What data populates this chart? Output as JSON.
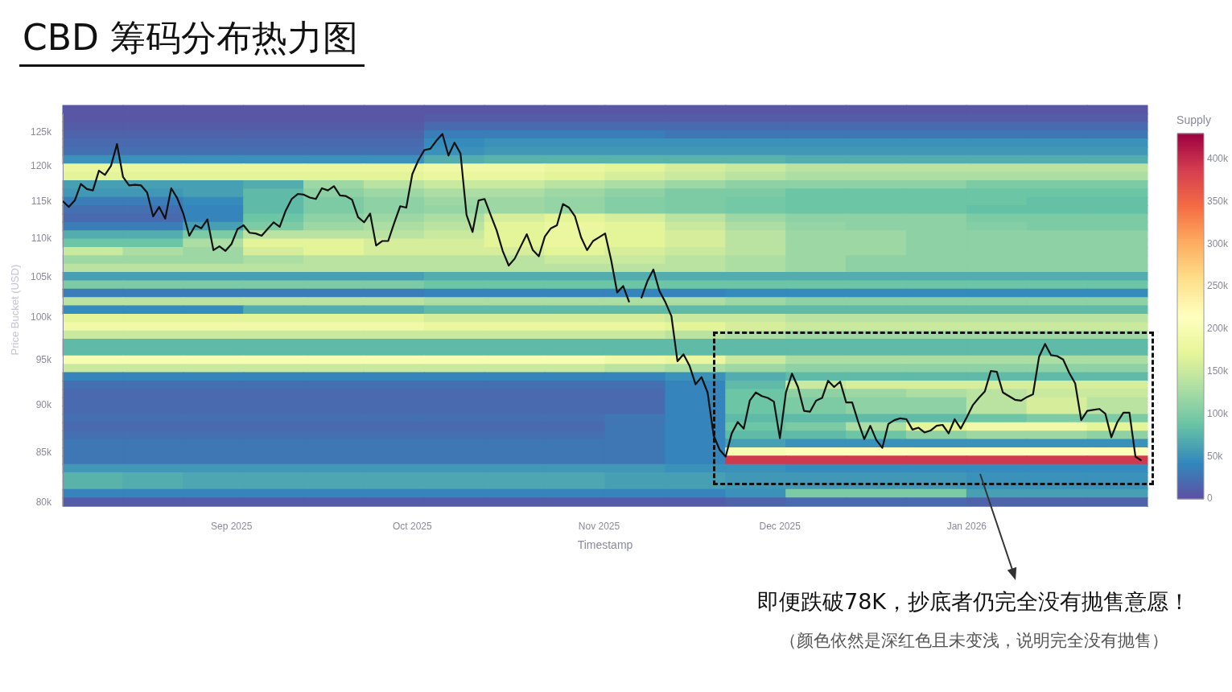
{
  "chart_data": [
    {
      "type": "heatmap",
      "title": "CBD 筹码分布热力图",
      "clabel": "Supply",
      "categories": [
        null,
        null,
        null,
        null,
        null,
        null,
        null,
        null,
        null,
        null,
        null,
        null,
        null,
        null,
        null,
        null,
        null,
        null
      ],
      "y_categories": [
        null,
        null,
        null,
        null,
        null,
        null,
        null,
        null,
        null,
        null,
        null,
        null,
        null,
        null,
        null,
        null,
        null,
        null,
        null,
        null,
        null,
        null,
        null,
        null,
        null,
        null,
        null,
        null,
        null,
        null,
        null,
        null,
        null,
        null,
        null,
        null,
        null,
        null,
        null,
        null,
        null,
        null,
        null,
        null,
        null,
        null,
        null,
        null
      ],
      "cells": [
        [
          5000,
          5000,
          5000,
          5000,
          5000,
          5000,
          5000,
          5000,
          5000,
          5000,
          5000,
          5000,
          5000,
          5000,
          5000,
          5000,
          5000,
          5000
        ],
        [
          5000,
          5000,
          5000,
          5000,
          5000,
          5000,
          10000,
          10000,
          10000,
          10000,
          10000,
          10000,
          10000,
          10000,
          10000,
          10000,
          10000,
          10000
        ],
        [
          10000,
          10000,
          10000,
          10000,
          10000,
          10000,
          20000,
          20000,
          20000,
          20000,
          20000,
          20000,
          20000,
          20000,
          20000,
          20000,
          20000,
          20000
        ],
        [
          15000,
          15000,
          15000,
          15000,
          15000,
          15000,
          35000,
          35000,
          35000,
          35000,
          30000,
          30000,
          30000,
          30000,
          30000,
          30000,
          30000,
          30000
        ],
        [
          20000,
          20000,
          20000,
          20000,
          20000,
          20000,
          45000,
          50000,
          50000,
          50000,
          50000,
          50000,
          50000,
          50000,
          50000,
          50000,
          50000,
          50000
        ],
        [
          25000,
          25000,
          25000,
          25000,
          25000,
          25000,
          50000,
          55000,
          55000,
          55000,
          55000,
          55000,
          55000,
          55000,
          55000,
          55000,
          55000,
          55000
        ],
        [
          50000,
          50000,
          50000,
          50000,
          50000,
          50000,
          70000,
          75000,
          75000,
          75000,
          75000,
          75000,
          70000,
          70000,
          70000,
          70000,
          70000,
          70000
        ],
        [
          180000,
          180000,
          180000,
          180000,
          180000,
          180000,
          190000,
          190000,
          180000,
          170000,
          160000,
          150000,
          140000,
          140000,
          140000,
          140000,
          140000,
          140000
        ],
        [
          170000,
          170000,
          170000,
          170000,
          170000,
          170000,
          180000,
          180000,
          170000,
          160000,
          150000,
          140000,
          130000,
          130000,
          130000,
          130000,
          130000,
          130000
        ],
        [
          60000,
          60000,
          60000,
          70000,
          120000,
          140000,
          150000,
          150000,
          140000,
          130000,
          120000,
          110000,
          110000,
          110000,
          110000,
          100000,
          100000,
          100000
        ],
        [
          55000,
          55000,
          60000,
          80000,
          110000,
          120000,
          130000,
          130000,
          120000,
          110000,
          100000,
          100000,
          90000,
          90000,
          90000,
          90000,
          90000,
          90000
        ],
        [
          35000,
          35000,
          45000,
          80000,
          100000,
          110000,
          120000,
          120000,
          115000,
          105000,
          100000,
          95000,
          90000,
          90000,
          90000,
          90000,
          85000,
          85000
        ],
        [
          25000,
          25000,
          40000,
          80000,
          100000,
          110000,
          115000,
          120000,
          115000,
          105000,
          100000,
          95000,
          90000,
          90000,
          90000,
          85000,
          85000,
          85000
        ],
        [
          20000,
          20000,
          40000,
          90000,
          110000,
          120000,
          130000,
          160000,
          170000,
          160000,
          140000,
          120000,
          110000,
          110000,
          110000,
          100000,
          100000,
          100000
        ],
        [
          35000,
          35000,
          60000,
          100000,
          120000,
          130000,
          140000,
          170000,
          180000,
          170000,
          150000,
          130000,
          115000,
          110000,
          110000,
          105000,
          100000,
          100000
        ],
        [
          70000,
          70000,
          100000,
          140000,
          140000,
          140000,
          150000,
          170000,
          180000,
          170000,
          160000,
          140000,
          120000,
          120000,
          110000,
          110000,
          110000,
          110000
        ],
        [
          90000,
          90000,
          130000,
          170000,
          170000,
          160000,
          160000,
          170000,
          180000,
          170000,
          160000,
          140000,
          120000,
          120000,
          110000,
          110000,
          110000,
          110000
        ],
        [
          150000,
          130000,
          120000,
          160000,
          170000,
          160000,
          160000,
          160000,
          170000,
          160000,
          150000,
          140000,
          120000,
          120000,
          110000,
          110000,
          110000,
          110000
        ],
        [
          120000,
          120000,
          120000,
          130000,
          140000,
          140000,
          140000,
          140000,
          150000,
          150000,
          140000,
          130000,
          120000,
          110000,
          110000,
          110000,
          110000,
          110000
        ],
        [
          140000,
          140000,
          140000,
          140000,
          140000,
          140000,
          140000,
          140000,
          140000,
          140000,
          140000,
          130000,
          120000,
          110000,
          110000,
          110000,
          110000,
          110000
        ],
        [
          60000,
          60000,
          60000,
          60000,
          60000,
          60000,
          70000,
          70000,
          70000,
          70000,
          70000,
          70000,
          70000,
          70000,
          70000,
          70000,
          70000,
          70000
        ],
        [
          100000,
          100000,
          100000,
          100000,
          100000,
          100000,
          90000,
          90000,
          90000,
          90000,
          90000,
          90000,
          90000,
          90000,
          90000,
          90000,
          90000,
          90000
        ],
        [
          35000,
          35000,
          35000,
          35000,
          35000,
          35000,
          40000,
          40000,
          40000,
          40000,
          40000,
          45000,
          45000,
          45000,
          45000,
          45000,
          45000,
          45000
        ],
        [
          140000,
          140000,
          140000,
          140000,
          140000,
          140000,
          130000,
          130000,
          130000,
          130000,
          130000,
          120000,
          110000,
          110000,
          110000,
          110000,
          110000,
          110000
        ],
        [
          45000,
          45000,
          45000,
          70000,
          70000,
          70000,
          80000,
          80000,
          80000,
          80000,
          80000,
          80000,
          80000,
          80000,
          80000,
          80000,
          80000,
          80000
        ],
        [
          170000,
          170000,
          170000,
          170000,
          170000,
          170000,
          160000,
          160000,
          160000,
          160000,
          150000,
          150000,
          140000,
          140000,
          140000,
          140000,
          140000,
          140000
        ],
        [
          190000,
          190000,
          190000,
          190000,
          190000,
          190000,
          180000,
          180000,
          180000,
          180000,
          170000,
          160000,
          150000,
          150000,
          150000,
          150000,
          150000,
          150000
        ],
        [
          150000,
          150000,
          150000,
          150000,
          150000,
          150000,
          150000,
          150000,
          150000,
          150000,
          140000,
          130000,
          120000,
          120000,
          120000,
          120000,
          120000,
          120000
        ],
        [
          80000,
          80000,
          80000,
          80000,
          80000,
          80000,
          80000,
          80000,
          80000,
          80000,
          80000,
          80000,
          80000,
          80000,
          80000,
          80000,
          80000,
          80000
        ],
        [
          80000,
          80000,
          80000,
          80000,
          80000,
          80000,
          80000,
          80000,
          80000,
          80000,
          80000,
          80000,
          80000,
          80000,
          80000,
          80000,
          80000,
          80000
        ],
        [
          200000,
          200000,
          200000,
          200000,
          200000,
          200000,
          200000,
          200000,
          200000,
          190000,
          180000,
          150000,
          130000,
          130000,
          130000,
          130000,
          130000,
          130000
        ],
        [
          150000,
          150000,
          150000,
          150000,
          150000,
          150000,
          150000,
          150000,
          150000,
          140000,
          130000,
          120000,
          110000,
          110000,
          110000,
          110000,
          110000,
          110000
        ],
        [
          40000,
          40000,
          40000,
          40000,
          40000,
          40000,
          40000,
          40000,
          40000,
          40000,
          50000,
          70000,
          80000,
          80000,
          80000,
          80000,
          80000,
          80000
        ],
        [
          25000,
          25000,
          25000,
          25000,
          25000,
          25000,
          25000,
          25000,
          25000,
          25000,
          40000,
          80000,
          150000,
          160000,
          160000,
          160000,
          160000,
          160000
        ],
        [
          20000,
          20000,
          20000,
          20000,
          20000,
          20000,
          20000,
          20000,
          20000,
          20000,
          40000,
          90000,
          110000,
          120000,
          130000,
          140000,
          150000,
          150000
        ],
        [
          20000,
          20000,
          20000,
          20000,
          20000,
          20000,
          20000,
          20000,
          20000,
          20000,
          40000,
          90000,
          100000,
          110000,
          110000,
          140000,
          160000,
          140000
        ],
        [
          20000,
          20000,
          20000,
          20000,
          20000,
          20000,
          20000,
          20000,
          20000,
          20000,
          40000,
          90000,
          100000,
          110000,
          110000,
          140000,
          160000,
          140000
        ],
        [
          25000,
          25000,
          25000,
          25000,
          25000,
          25000,
          25000,
          25000,
          25000,
          30000,
          40000,
          80000,
          80000,
          80000,
          80000,
          90000,
          100000,
          100000
        ],
        [
          20000,
          20000,
          20000,
          20000,
          20000,
          20000,
          20000,
          20000,
          20000,
          30000,
          40000,
          90000,
          100000,
          130000,
          170000,
          190000,
          190000,
          170000
        ],
        [
          25000,
          25000,
          25000,
          25000,
          25000,
          25000,
          25000,
          25000,
          25000,
          30000,
          40000,
          80000,
          80000,
          90000,
          110000,
          120000,
          120000,
          110000
        ],
        [
          30000,
          30000,
          30000,
          30000,
          30000,
          30000,
          30000,
          30000,
          30000,
          30000,
          40000,
          60000,
          50000,
          50000,
          50000,
          50000,
          50000,
          50000
        ],
        [
          30000,
          30000,
          30000,
          30000,
          30000,
          30000,
          30000,
          30000,
          30000,
          30000,
          40000,
          200000,
          210000,
          210000,
          210000,
          210000,
          210000,
          210000
        ],
        [
          30000,
          30000,
          30000,
          30000,
          30000,
          30000,
          30000,
          30000,
          30000,
          30000,
          40000,
          390000,
          390000,
          390000,
          390000,
          390000,
          390000,
          390000
        ],
        [
          55000,
          55000,
          55000,
          55000,
          55000,
          55000,
          55000,
          55000,
          55000,
          55000,
          50000,
          50000,
          45000,
          45000,
          45000,
          45000,
          45000,
          45000
        ],
        [
          75000,
          70000,
          65000,
          65000,
          65000,
          65000,
          65000,
          65000,
          65000,
          60000,
          60000,
          55000,
          55000,
          55000,
          55000,
          50000,
          50000,
          50000
        ],
        [
          75000,
          70000,
          65000,
          65000,
          65000,
          65000,
          65000,
          65000,
          65000,
          60000,
          60000,
          55000,
          55000,
          55000,
          55000,
          50000,
          50000,
          50000
        ],
        [
          40000,
          40000,
          40000,
          40000,
          40000,
          40000,
          40000,
          40000,
          40000,
          40000,
          40000,
          50000,
          100000,
          100000,
          100000,
          60000,
          60000,
          60000
        ],
        [
          10000,
          10000,
          10000,
          10000,
          10000,
          10000,
          10000,
          10000,
          10000,
          10000,
          10000,
          15000,
          20000,
          20000,
          20000,
          15000,
          15000,
          15000
        ]
      ],
      "clim": [
        0,
        430000
      ],
      "cticks": [
        0,
        {
          "value": 50000,
          "label": "50k"
        },
        {
          "value": 100000,
          "label": "100k"
        },
        {
          "value": 150000,
          "label": "150k"
        },
        {
          "value": 200000,
          "label": "200k"
        },
        {
          "value": 250000,
          "label": "250k"
        },
        {
          "value": 300000,
          "label": "300k"
        },
        {
          "value": 350000,
          "label": "350k"
        },
        {
          "value": 400000,
          "label": "400k"
        }
      ],
      "annotations": [
        "即便跌破78K，抄底者仍完全没有抛售意愿！",
        "（颜色依然是深红色且未变浅，说明完全没有抛售）"
      ]
    },
    {
      "type": "line",
      "xlabel": "Timestamp",
      "ylabel": "Price Bucket (USD)",
      "color": "#111111",
      "log": true,
      "xlim": [
        "2025-08-04",
        "2026-01-31"
      ],
      "xticks": [
        {
          "value": "2025-09-01",
          "label": "Sep 2025"
        },
        {
          "value": "2025-10-01",
          "label": "Oct 2025"
        },
        {
          "value": "2025-11-01",
          "label": "Nov 2025"
        },
        {
          "value": "2025-12-01",
          "label": "Dec 2025"
        },
        {
          "value": "2026-01-01",
          "label": "Jan 2026"
        }
      ],
      "ylim": [
        79700,
        127900
      ],
      "yticks": [
        {
          "value": 80000,
          "label": "80k"
        },
        {
          "value": 85000,
          "label": "85k"
        },
        {
          "value": 90000,
          "label": "90k"
        },
        {
          "value": 95000,
          "label": "95k"
        },
        {
          "value": 100000,
          "label": "100k"
        },
        {
          "value": 105000,
          "label": "105k"
        },
        {
          "value": 110000,
          "label": "110k"
        },
        {
          "value": 115000,
          "label": "115k"
        },
        {
          "value": 120000,
          "label": "120k"
        },
        {
          "value": 125000,
          "label": "125k"
        }
      ],
      "x": [
        "2025-08-04",
        "2025-08-05",
        "2025-08-06",
        "2025-08-07",
        "2025-08-08",
        "2025-08-09",
        "2025-08-10",
        "2025-08-11",
        "2025-08-12",
        "2025-08-13",
        "2025-08-14",
        "2025-08-15",
        "2025-08-16",
        "2025-08-17",
        "2025-08-18",
        "2025-08-19",
        "2025-08-20",
        "2025-08-21",
        "2025-08-22",
        "2025-08-23",
        "2025-08-24",
        "2025-08-25",
        "2025-08-26",
        "2025-08-27",
        "2025-08-28",
        "2025-08-29",
        "2025-08-30",
        "2025-08-31",
        "2025-09-01",
        "2025-09-02",
        "2025-09-03",
        "2025-09-04",
        "2025-09-05",
        "2025-09-06",
        "2025-09-07",
        "2025-09-08",
        "2025-09-09",
        "2025-09-10",
        "2025-09-11",
        "2025-09-12",
        "2025-09-13",
        "2025-09-14",
        "2025-09-15",
        "2025-09-16",
        "2025-09-17",
        "2025-09-18",
        "2025-09-19",
        "2025-09-20",
        "2025-09-21",
        "2025-09-22",
        "2025-09-23",
        "2025-09-24",
        "2025-09-25",
        "2025-09-26",
        "2025-09-27",
        "2025-09-28",
        "2025-09-29",
        "2025-09-30",
        "2025-10-01",
        "2025-10-02",
        "2025-10-03",
        "2025-10-04",
        "2025-10-05",
        "2025-10-06",
        "2025-10-07",
        "2025-10-08",
        "2025-10-09",
        "2025-10-10",
        "2025-10-11",
        "2025-10-12",
        "2025-10-13",
        "2025-10-14",
        "2025-10-15",
        "2025-10-16",
        "2025-10-17",
        "2025-10-18",
        "2025-10-19",
        "2025-10-20",
        "2025-10-21",
        "2025-10-22",
        "2025-10-23",
        "2025-10-24",
        "2025-10-25",
        "2025-10-26",
        "2025-10-27",
        "2025-10-28",
        "2025-10-29",
        "2025-10-30",
        "2025-10-31",
        "2025-11-01",
        "2025-11-02",
        "2025-11-03",
        "2025-11-04",
        "2025-11-05",
        "2025-11-06",
        "2025-11-07",
        "2025-11-08",
        "2025-11-09",
        "2025-11-10",
        "2025-11-11",
        "2025-11-12",
        "2025-11-13",
        "2025-11-14",
        "2025-11-15",
        "2025-11-16",
        "2025-11-17",
        "2025-11-18",
        "2025-11-19",
        "2025-11-20",
        "2025-11-21",
        "2025-11-22",
        "2025-11-23",
        "2025-11-24",
        "2025-11-25",
        "2025-11-26",
        "2025-11-27",
        "2025-11-28",
        "2025-11-29",
        "2025-11-30",
        "2025-12-01",
        "2025-12-02",
        "2025-12-03",
        "2025-12-04",
        "2025-12-05",
        "2025-12-06",
        "2025-12-07",
        "2025-12-08",
        "2025-12-09",
        "2025-12-10",
        "2025-12-11",
        "2025-12-12",
        "2025-12-13",
        "2025-12-14",
        "2025-12-15",
        "2025-12-16",
        "2025-12-17",
        "2025-12-18",
        "2025-12-19",
        "2025-12-20",
        "2025-12-21",
        "2025-12-22",
        "2025-12-23",
        "2025-12-24",
        "2025-12-25",
        "2025-12-26",
        "2025-12-27",
        "2025-12-28",
        "2025-12-29",
        "2025-12-30",
        "2025-12-31",
        "2026-01-01",
        "2026-01-02",
        "2026-01-03",
        "2026-01-04",
        "2026-01-05",
        "2026-01-06",
        "2026-01-07",
        "2026-01-08",
        "2026-01-09",
        "2026-01-10",
        "2026-01-11",
        "2026-01-12",
        "2026-01-13",
        "2026-01-14",
        "2026-01-15",
        "2026-01-16",
        "2026-01-17",
        "2026-01-18",
        "2026-01-19",
        "2026-01-20",
        "2026-01-21",
        "2026-01-22",
        "2026-01-23",
        "2026-01-24",
        "2026-01-25",
        "2026-01-26",
        "2026-01-27",
        "2026-01-28",
        "2026-01-29",
        "2026-01-30"
      ],
      "values": [
        115100,
        114300,
        115200,
        117500,
        116800,
        116600,
        119400,
        118800,
        120100,
        123300,
        118500,
        117300,
        117400,
        117300,
        116300,
        113000,
        114300,
        112700,
        116900,
        115500,
        113400,
        110400,
        111800,
        111400,
        112600,
        108500,
        109000,
        108400,
        109300,
        111300,
        111800,
        110800,
        110700,
        110400,
        111300,
        112200,
        111600,
        113800,
        115400,
        116100,
        116000,
        115600,
        115400,
        116900,
        116600,
        117200,
        115900,
        115800,
        115300,
        112900,
        112200,
        113400,
        109100,
        109700,
        109700,
        112100,
        114400,
        114200,
        118900,
        120900,
        122400,
        122600,
        123800,
        124800,
        121600,
        123500,
        121900,
        113200,
        110900,
        115200,
        115400,
        113200,
        111100,
        108400,
        106500,
        107400,
        109000,
        110600,
        108500,
        107700,
        110300,
        111400,
        111800,
        114700,
        114200,
        113000,
        110200,
        108500,
        109700,
        110200,
        110700,
        107200,
        103100,
        103900,
        101900,
        null,
        102400,
        104500,
        106000,
        103300,
        101900,
        100200,
        94900,
        95700,
        94400,
        92300,
        93100,
        91400,
        86800,
        85300,
        84600,
        87000,
        88200,
        87500,
        90500,
        91400,
        91000,
        90800,
        90400,
        86500,
        91400,
        93500,
        92000,
        89400,
        89300,
        90500,
        90800,
        92700,
        92000,
        92600,
        90300,
        90300,
        88200,
        86400,
        87800,
        86300,
        85500,
        88000,
        88400,
        88600,
        88500,
        87400,
        87600,
        87100,
        87300,
        87800,
        87900,
        87000,
        88500,
        87500,
        88700,
        90000,
        90800,
        91500,
        93800,
        93700,
        91400,
        91000,
        90600,
        90500,
        90900,
        91200,
        95400,
        96900,
        95600,
        95500,
        95100,
        93600,
        92400,
        88400,
        89400,
        89500,
        89600,
        89100,
        86600,
        88200,
        89200,
        89200,
        84600,
        84200
      ]
    }
  ]
}
